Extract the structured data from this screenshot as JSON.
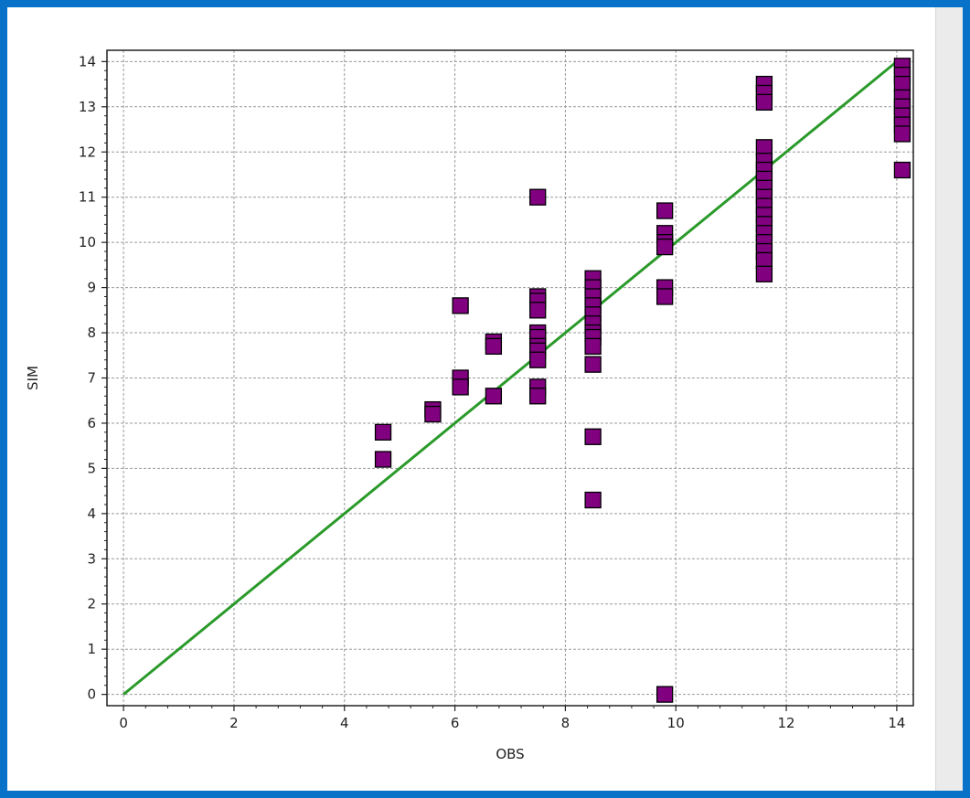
{
  "colors": {
    "frame": "#0872c9",
    "marker_fill": "#800080",
    "marker_stroke": "#000000",
    "line": "#2a9a2a",
    "grid": "#9a9a9a"
  },
  "chart_data": {
    "type": "scatter",
    "title": "",
    "xlabel": "OBS",
    "ylabel": "SIM",
    "xlim": [
      -0.3,
      14.3
    ],
    "ylim": [
      -0.25,
      14.25
    ],
    "xticks": [
      0,
      2,
      4,
      6,
      8,
      10,
      12,
      14
    ],
    "yticks": [
      0,
      1,
      2,
      3,
      4,
      5,
      6,
      7,
      8,
      9,
      10,
      11,
      12,
      13,
      14
    ],
    "grid": true,
    "legend": "none",
    "points": [
      [
        4.7,
        5.8
      ],
      [
        4.7,
        5.2
      ],
      [
        5.6,
        6.3
      ],
      [
        5.6,
        6.2
      ],
      [
        6.1,
        8.6
      ],
      [
        6.1,
        7.0
      ],
      [
        6.1,
        6.8
      ],
      [
        6.7,
        7.8
      ],
      [
        6.7,
        7.7
      ],
      [
        6.7,
        6.6
      ],
      [
        7.5,
        11.0
      ],
      [
        7.5,
        8.8
      ],
      [
        7.5,
        8.7
      ],
      [
        7.5,
        8.5
      ],
      [
        7.5,
        8.0
      ],
      [
        7.5,
        7.9
      ],
      [
        7.5,
        7.7
      ],
      [
        7.5,
        7.6
      ],
      [
        7.5,
        7.4
      ],
      [
        7.5,
        6.8
      ],
      [
        7.5,
        6.6
      ],
      [
        8.5,
        9.2
      ],
      [
        8.5,
        9.0
      ],
      [
        8.5,
        8.8
      ],
      [
        8.5,
        8.6
      ],
      [
        8.5,
        8.4
      ],
      [
        8.5,
        8.2
      ],
      [
        8.5,
        8.0
      ],
      [
        8.5,
        7.9
      ],
      [
        8.5,
        7.7
      ],
      [
        8.5,
        7.3
      ],
      [
        8.5,
        5.7
      ],
      [
        8.5,
        4.3
      ],
      [
        9.8,
        10.7
      ],
      [
        9.8,
        10.2
      ],
      [
        9.8,
        10.0
      ],
      [
        9.8,
        9.9
      ],
      [
        9.8,
        9.0
      ],
      [
        9.8,
        8.8
      ],
      [
        9.8,
        0.0
      ],
      [
        11.6,
        13.5
      ],
      [
        11.6,
        13.3
      ],
      [
        11.6,
        13.1
      ],
      [
        11.6,
        12.1
      ],
      [
        11.6,
        11.8
      ],
      [
        11.6,
        11.6
      ],
      [
        11.6,
        11.4
      ],
      [
        11.6,
        11.2
      ],
      [
        11.6,
        11.0
      ],
      [
        11.6,
        10.8
      ],
      [
        11.6,
        10.6
      ],
      [
        11.6,
        10.4
      ],
      [
        11.6,
        10.2
      ],
      [
        11.6,
        10.0
      ],
      [
        11.6,
        9.8
      ],
      [
        11.6,
        9.6
      ],
      [
        11.6,
        9.3
      ],
      [
        14.1,
        13.9
      ],
      [
        14.1,
        13.7
      ],
      [
        14.1,
        13.5
      ],
      [
        14.1,
        13.2
      ],
      [
        14.1,
        13.0
      ],
      [
        14.1,
        12.8
      ],
      [
        14.1,
        12.6
      ],
      [
        14.1,
        12.4
      ],
      [
        14.1,
        11.6
      ]
    ],
    "reference_line": {
      "from": [
        0,
        0
      ],
      "to": [
        14,
        14
      ]
    }
  }
}
